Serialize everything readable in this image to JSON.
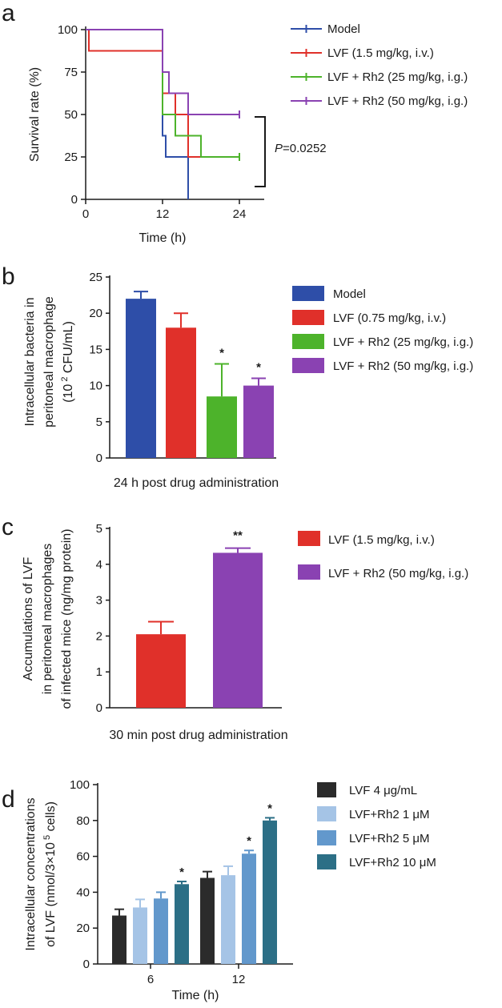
{
  "chart_data": [
    {
      "panel": "a",
      "type": "line",
      "title": "",
      "xlabel": "Time (h)",
      "ylabel": "Survival rate (%)",
      "xlim": [
        0,
        24
      ],
      "ylim": [
        0,
        100
      ],
      "xticks": [
        0,
        12,
        24
      ],
      "yticks": [
        0,
        25,
        50,
        75,
        100
      ],
      "legend_position": "top-right",
      "annotation": {
        "prefix": "P",
        "text": "=0.0252"
      },
      "series": [
        {
          "name": "Model",
          "color": "#2e4ea8",
          "steps": [
            [
              0,
              100
            ],
            [
              12,
              100
            ],
            [
              12,
              37.5
            ],
            [
              12.5,
              37.5
            ],
            [
              12.5,
              25
            ],
            [
              16,
              25
            ],
            [
              16,
              0
            ]
          ]
        },
        {
          "name": "LVF (1.5 mg/kg, i.v.)",
          "color": "#e0302a",
          "steps": [
            [
              0,
              100
            ],
            [
              0.5,
              100
            ],
            [
              0.5,
              87.5
            ],
            [
              12,
              87.5
            ],
            [
              12,
              62.5
            ],
            [
              14,
              62.5
            ],
            [
              14,
              50
            ],
            [
              16,
              50
            ],
            [
              16,
              25
            ],
            [
              24,
              25
            ]
          ]
        },
        {
          "name": "LVF + Rh2  (25 mg/kg, i.g.)",
          "color": "#4db32b",
          "steps": [
            [
              0,
              100
            ],
            [
              12,
              100
            ],
            [
              12,
              50
            ],
            [
              14,
              50
            ],
            [
              14,
              37.5
            ],
            [
              18,
              37.5
            ],
            [
              18,
              25
            ],
            [
              24,
              25
            ]
          ]
        },
        {
          "name": "LVF + Rh2  (50 mg/kg, i.g.)",
          "color": "#8a42b2",
          "steps": [
            [
              0,
              100
            ],
            [
              12,
              100
            ],
            [
              12,
              75
            ],
            [
              13,
              75
            ],
            [
              13,
              62.5
            ],
            [
              16,
              62.5
            ],
            [
              16,
              50
            ],
            [
              24,
              50
            ]
          ]
        }
      ]
    },
    {
      "panel": "b",
      "type": "bar",
      "xlabel": "24 h post drug administration",
      "ylabel_lines": [
        "Intracellular bacteria in",
        "peritoneal macrophage"
      ],
      "ylabel_unit": {
        "prefix": "(10",
        "sup": "2",
        "suffix": " CFU/mL)"
      },
      "ylim": [
        0,
        25
      ],
      "yticks": [
        0,
        5,
        10,
        15,
        20,
        25
      ],
      "legend_position": "right",
      "categories": [
        "Model",
        "LVF (0.75 mg/kg, i.v.)",
        "LVF + Rh2  (25 mg/kg, i.g.)",
        "LVF + Rh2  (50 mg/kg, i.g.)"
      ],
      "values": [
        22,
        18,
        8.5,
        10
      ],
      "errors": [
        1,
        2,
        4.5,
        1
      ],
      "significance": [
        "",
        "",
        "*",
        "*"
      ],
      "colors": [
        "#2e4ea8",
        "#e0302a",
        "#4db32b",
        "#8a42b2"
      ]
    },
    {
      "panel": "c",
      "type": "bar",
      "xlabel": "30 min post drug administration",
      "ylabel_lines": [
        "Accumulations of LVF",
        "in peritoneal macrophages",
        "of infected mice (ng/mg protein)"
      ],
      "ylim": [
        0,
        5
      ],
      "yticks": [
        0,
        1,
        2,
        3,
        4,
        5
      ],
      "legend_position": "right",
      "categories": [
        "LVF (1.5 mg/kg, i.v.)",
        "LVF + Rh2  (50 mg/kg, i.g.)"
      ],
      "values": [
        2.05,
        4.32
      ],
      "errors": [
        0.35,
        0.13
      ],
      "significance": [
        "",
        "**"
      ],
      "colors": [
        "#e0302a",
        "#8a42b2"
      ]
    },
    {
      "panel": "d",
      "type": "bar",
      "xlabel": "Time (h)",
      "ylabel_lines": [
        "Intracellular concentrations"
      ],
      "ylabel_unit": {
        "prefix": "of LVF (nmol/3×10",
        "sup": "5",
        "suffix": " cells)"
      },
      "ylim": [
        0,
        100
      ],
      "yticks": [
        0,
        20,
        40,
        60,
        80,
        100
      ],
      "legend_position": "right",
      "categories": [
        "6",
        "12"
      ],
      "series": [
        {
          "name": "LVF  4 μg/mL",
          "color": "#2b2b2b",
          "values": [
            27,
            48
          ],
          "errors": [
            3.5,
            3.5
          ],
          "significance": [
            "",
            ""
          ]
        },
        {
          "name": "LVF+Rh2  1 μM",
          "color": "#a5c4e6",
          "values": [
            31.5,
            49.5
          ],
          "errors": [
            4.5,
            5
          ],
          "significance": [
            "",
            ""
          ]
        },
        {
          "name": "LVF+Rh2  5 μM",
          "color": "#6298cc",
          "values": [
            36.5,
            61.5
          ],
          "errors": [
            3.5,
            1.8
          ],
          "significance": [
            "",
            "*"
          ]
        },
        {
          "name": "LVF+Rh2  10 μM",
          "color": "#2c6f86",
          "values": [
            44.5,
            80
          ],
          "errors": [
            1.5,
            1.5
          ],
          "significance": [
            "*",
            "*"
          ]
        }
      ]
    }
  ],
  "panel_labels": [
    "a",
    "b",
    "c",
    "d"
  ]
}
